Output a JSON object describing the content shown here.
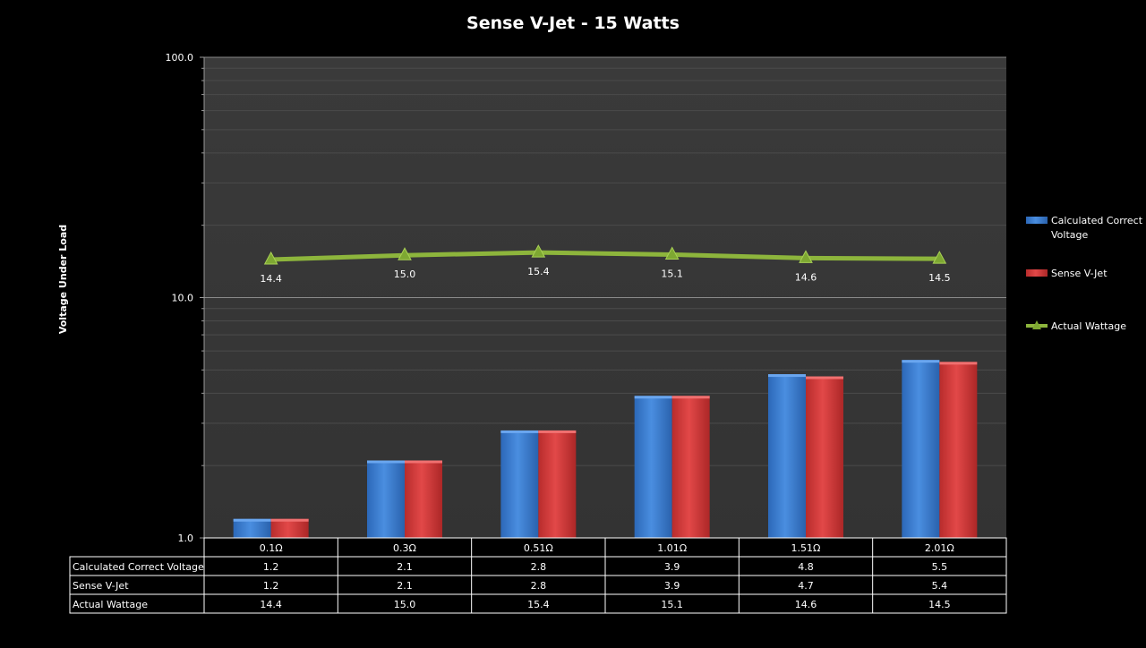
{
  "chart_data": {
    "type": "bar",
    "title": "Sense V-Jet - 15 Watts",
    "xlabel": "",
    "ylabel": "Voltage Under Load",
    "yscale": "log",
    "ylim": [
      1,
      100
    ],
    "ytick_labels": [
      "1.0",
      "10.0",
      "100.0"
    ],
    "grid": true,
    "legend_position": "right",
    "categories": [
      "0.1Ω",
      "0.3Ω",
      "0.51Ω",
      "1.01Ω",
      "1.51Ω",
      "2.01Ω"
    ],
    "series": [
      {
        "name": "Calculated Correct Voltage",
        "kind": "bar",
        "color": "#3a7fd5",
        "values": [
          1.2,
          2.1,
          2.8,
          3.9,
          4.8,
          5.5
        ],
        "labels": [
          "1.2",
          "2.1",
          "2.8",
          "3.9",
          "4.8",
          "5.5"
        ]
      },
      {
        "name": "Sense V-Jet",
        "kind": "bar",
        "color": "#d93b3b",
        "values": [
          1.2,
          2.1,
          2.8,
          3.9,
          4.7,
          5.4
        ],
        "labels": [
          "1.2",
          "2.1",
          "2.8",
          "3.9",
          "4.7",
          "5.4"
        ]
      },
      {
        "name": "Actual Wattage",
        "kind": "line",
        "marker": "triangle",
        "color": "#8db53c",
        "values": [
          14.4,
          15.0,
          15.4,
          15.1,
          14.6,
          14.5
        ],
        "labels": [
          "14.4",
          "15.0",
          "15.4",
          "15.1",
          "14.6",
          "14.5"
        ]
      }
    ],
    "legend_labels": [
      [
        "Calculated Correct",
        "Voltage"
      ],
      [
        "Sense V-Jet"
      ],
      [
        "Actual Wattage"
      ]
    ]
  }
}
